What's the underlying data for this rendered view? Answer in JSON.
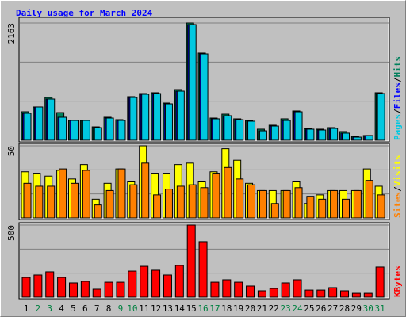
{
  "chart_data": [
    {
      "type": "bar",
      "title": "Daily usage for March 2024",
      "ylim": [
        0,
        2163
      ],
      "yticks": [
        {
          "value": 721,
          "label": null
        },
        {
          "value": 1442,
          "label": null
        },
        2163
      ],
      "legend_separator": "/",
      "series": [
        {
          "name": "Hits",
          "color": "#00805c",
          "values": [
            526,
            614,
            789,
            511,
            365,
            365,
            248,
            424,
            380,
            804,
            862,
            877,
            687,
            935,
            2163,
            1608,
            409,
            482,
            395,
            365,
            205,
            278,
            395,
            541,
            219,
            205,
            234,
            161,
            73,
            88,
            877
          ]
        },
        {
          "name": "Files",
          "color": "#0000ff",
          "values": [
            497,
            614,
            760,
            424,
            365,
            365,
            234,
            409,
            365,
            789,
            848,
            862,
            672,
            906,
            2134,
            1593,
            395,
            453,
            380,
            351,
            175,
            263,
            365,
            526,
            205,
            190,
            219,
            132,
            58,
            88,
            862
          ]
        },
        {
          "name": "Pages",
          "color": "#00c8e0",
          "values": [
            497,
            614,
            760,
            424,
            365,
            365,
            234,
            409,
            365,
            789,
            848,
            862,
            672,
            906,
            2134,
            1593,
            395,
            453,
            380,
            351,
            175,
            263,
            365,
            526,
            205,
            190,
            219,
            132,
            58,
            88,
            862
          ]
        }
      ]
    },
    {
      "type": "bar",
      "ylim": [
        0,
        50
      ],
      "yticks": [
        {
          "value": 16.67,
          "label": null
        },
        {
          "value": 33.33,
          "label": null
        },
        50
      ],
      "legend_separator": "/",
      "series": [
        {
          "name": "Visits",
          "color": "#ffff00",
          "values": [
            32,
            31,
            29,
            33,
            27,
            37,
            13,
            24,
            34,
            25,
            50,
            31,
            31,
            37,
            38,
            25,
            32,
            48,
            40,
            24,
            19,
            19,
            19,
            25,
            10,
            16,
            19,
            19,
            19,
            34,
            22
          ]
        },
        {
          "name": "Sites",
          "color": "#ff8000",
          "values": [
            24,
            22,
            22,
            34,
            24,
            33,
            9,
            19,
            34,
            23,
            38,
            16,
            20,
            22,
            23,
            21,
            31,
            35,
            27,
            23,
            19,
            10,
            19,
            21,
            15,
            13,
            19,
            13,
            19,
            26,
            16
          ]
        }
      ]
    },
    {
      "type": "bar",
      "ylim": [
        0,
        500
      ],
      "yticks": [
        {
          "value": 166.67,
          "label": null
        },
        {
          "value": 333.33,
          "label": null
        },
        500
      ],
      "categories": [
        "1",
        "2",
        "3",
        "4",
        "5",
        "6",
        "7",
        "8",
        "9",
        "10",
        "11",
        "12",
        "13",
        "14",
        "15",
        "16",
        "17",
        "18",
        "19",
        "20",
        "21",
        "22",
        "23",
        "24",
        "25",
        "26",
        "27",
        "28",
        "29",
        "30",
        "31"
      ],
      "category_colors": [
        "#000000",
        "#008040",
        "#008040",
        "#000000",
        "#000000",
        "#000000",
        "#000000",
        "#000000",
        "#008040",
        "#008040",
        "#000000",
        "#000000",
        "#000000",
        "#000000",
        "#000000",
        "#008040",
        "#008040",
        "#000000",
        "#000000",
        "#000000",
        "#000000",
        "#000000",
        "#008040",
        "#008040",
        "#000000",
        "#000000",
        "#000000",
        "#000000",
        "#000000",
        "#008040",
        "#008040"
      ],
      "series": [
        {
          "name": "KBytes",
          "color": "#ff0000",
          "values": [
            137,
            154,
            176,
            137,
            99,
            110,
            55,
            104,
            104,
            181,
            214,
            187,
            154,
            220,
            500,
            385,
            104,
            121,
            104,
            77,
            44,
            60,
            99,
            121,
            49,
            49,
            66,
            44,
            27,
            27,
            209
          ]
        }
      ]
    }
  ]
}
